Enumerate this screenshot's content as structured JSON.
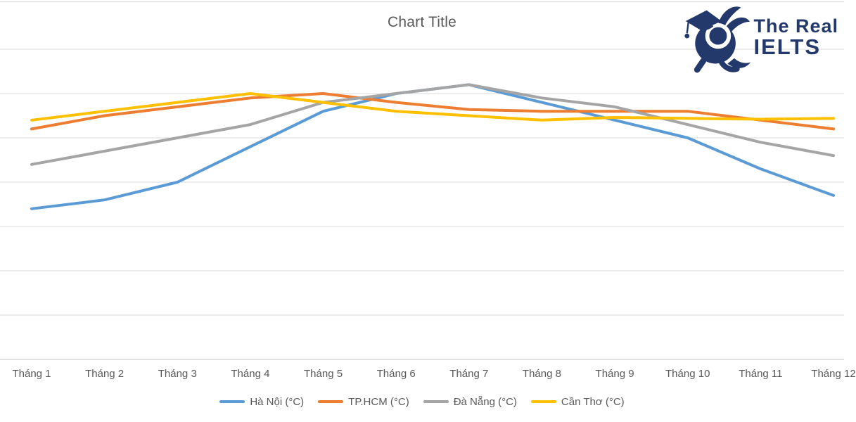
{
  "page": {
    "background": "#ffffff",
    "top_border_color": "#d9d9d9"
  },
  "logo": {
    "mascot_icon": "rabbit-graduate-icon",
    "line1": "The Real",
    "line2": "IELTS",
    "color": "#24396b"
  },
  "chart_data": {
    "type": "line",
    "title": "Chart Title",
    "xlabel": "",
    "ylabel": "",
    "categories": [
      "Tháng 1",
      "Tháng 2",
      "Tháng 3",
      "Tháng 4",
      "Tháng 5",
      "Tháng 6",
      "Tháng 7",
      "Tháng 8",
      "Tháng 9",
      "Tháng 10",
      "Tháng 11",
      "Tháng 12"
    ],
    "series": [
      {
        "name": "Hà Nội (°C)",
        "color": "#5B9BD5",
        "values": [
          17,
          18,
          20,
          24,
          28,
          30,
          31,
          29,
          27,
          25,
          21.5,
          18.5
        ]
      },
      {
        "name": "TP.HCM (°C)",
        "color": "#ED7D31",
        "values": [
          26,
          27.5,
          28.5,
          29.5,
          30,
          29,
          28.2,
          28,
          28,
          28,
          27,
          26
        ]
      },
      {
        "name": "Đà Nẵng (°C)",
        "color": "#A5A5A5",
        "values": [
          22,
          23.5,
          25,
          26.5,
          29,
          30,
          31,
          29.5,
          28.5,
          26.5,
          24.5,
          23
        ]
      },
      {
        "name": "Cần Thơ (°C)",
        "color": "#FFC000",
        "values": [
          27,
          28,
          29,
          30,
          29,
          28,
          27.5,
          27,
          27.3,
          27.2,
          27.1,
          27.2
        ]
      }
    ],
    "ylim": [
      0,
      35
    ],
    "ytick_step": 5,
    "grid": true,
    "gridline_color": "#d9d9d9",
    "axis_line_color": "#c0c0c0",
    "text_color": "#595959",
    "title_color": "#595959",
    "legend_position": "bottom",
    "line_width": 4
  }
}
